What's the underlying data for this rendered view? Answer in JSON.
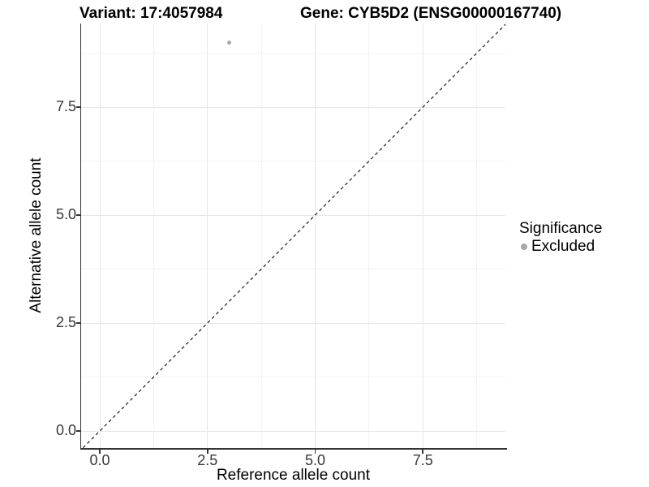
{
  "chart_data": {
    "type": "scatter",
    "title_left": "Variant: 17:4057984",
    "title_right": "Gene: CYB5D2 (ENSG00000167740)",
    "xlabel": "Reference allele count",
    "ylabel": "Alternative allele count",
    "xlim": [
      -0.43,
      9.42
    ],
    "ylim": [
      -0.39,
      9.83
    ],
    "x_tick_values": [
      0,
      2.5,
      5,
      7.5
    ],
    "x_tick_labels": [
      "0.0",
      "2.5",
      "5.0",
      "7.5"
    ],
    "y_tick_values": [
      0,
      2.5,
      5,
      7.5
    ],
    "y_tick_labels": [
      "0.0",
      "2.5",
      "5.0",
      "7.5"
    ],
    "x_minor_values": [
      1.25,
      3.75,
      6.25,
      8.75
    ],
    "y_minor_values": [
      1.25,
      3.75,
      6.25,
      8.75
    ],
    "grid": true,
    "points": [
      {
        "x": 3,
        "y": 9,
        "significance": "Excluded"
      }
    ],
    "identity_line": {
      "slope": 1,
      "intercept": 0,
      "style": "dashed"
    },
    "legend": {
      "title": "Significance",
      "position": "right",
      "entries": [
        {
          "label": "Excluded",
          "color": "#a8a8a8"
        }
      ]
    }
  },
  "colors": {
    "background": "#ffffff",
    "axis": "#333333",
    "grid_major": "#e8e8e8",
    "grid_minor": "#f3f3f3",
    "tick_text": "#383838",
    "point": "#a8a8a8",
    "identity_line": "#1a1a1a"
  }
}
